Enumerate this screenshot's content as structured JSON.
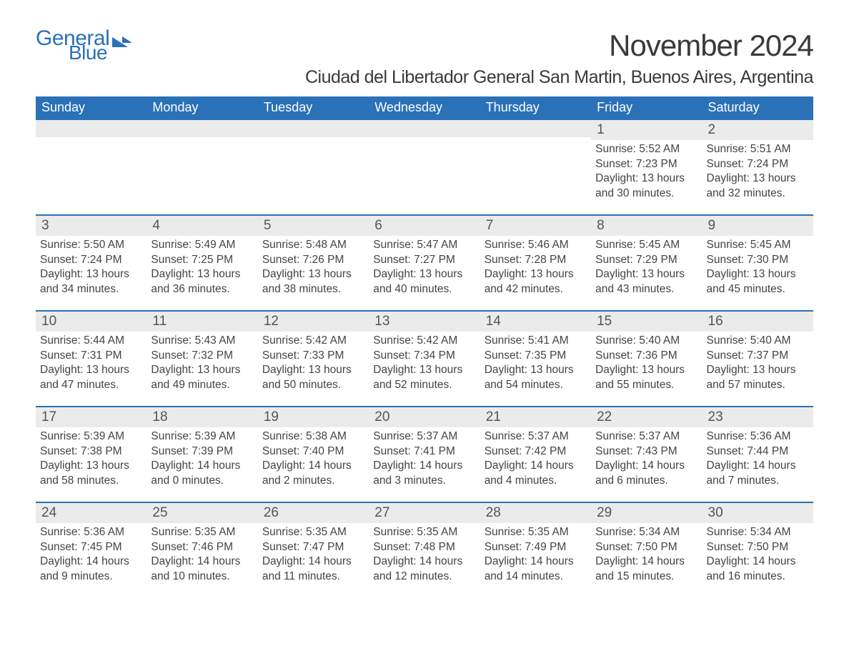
{
  "logo": {
    "text1": "General",
    "text2": "Blue"
  },
  "title": "November 2024",
  "location": "Ciudad del Libertador General San Martin, Buenos Aires, Argentina",
  "colors": {
    "header_bg": "#2a71b8",
    "header_text": "#ffffff",
    "daynum_bg": "#ebebeb",
    "text": "#444444",
    "border": "#2a71b8",
    "background": "#ffffff"
  },
  "typography": {
    "title_fontsize": 42,
    "location_fontsize": 25,
    "weekday_fontsize": 18,
    "daynum_fontsize": 19,
    "body_fontsize": 15.5
  },
  "weekdays": [
    "Sunday",
    "Monday",
    "Tuesday",
    "Wednesday",
    "Thursday",
    "Friday",
    "Saturday"
  ],
  "weeks": [
    [
      null,
      null,
      null,
      null,
      null,
      {
        "day": "1",
        "sunrise": "Sunrise: 5:52 AM",
        "sunset": "Sunset: 7:23 PM",
        "daylight1": "Daylight: 13 hours",
        "daylight2": "and 30 minutes."
      },
      {
        "day": "2",
        "sunrise": "Sunrise: 5:51 AM",
        "sunset": "Sunset: 7:24 PM",
        "daylight1": "Daylight: 13 hours",
        "daylight2": "and 32 minutes."
      }
    ],
    [
      {
        "day": "3",
        "sunrise": "Sunrise: 5:50 AM",
        "sunset": "Sunset: 7:24 PM",
        "daylight1": "Daylight: 13 hours",
        "daylight2": "and 34 minutes."
      },
      {
        "day": "4",
        "sunrise": "Sunrise: 5:49 AM",
        "sunset": "Sunset: 7:25 PM",
        "daylight1": "Daylight: 13 hours",
        "daylight2": "and 36 minutes."
      },
      {
        "day": "5",
        "sunrise": "Sunrise: 5:48 AM",
        "sunset": "Sunset: 7:26 PM",
        "daylight1": "Daylight: 13 hours",
        "daylight2": "and 38 minutes."
      },
      {
        "day": "6",
        "sunrise": "Sunrise: 5:47 AM",
        "sunset": "Sunset: 7:27 PM",
        "daylight1": "Daylight: 13 hours",
        "daylight2": "and 40 minutes."
      },
      {
        "day": "7",
        "sunrise": "Sunrise: 5:46 AM",
        "sunset": "Sunset: 7:28 PM",
        "daylight1": "Daylight: 13 hours",
        "daylight2": "and 42 minutes."
      },
      {
        "day": "8",
        "sunrise": "Sunrise: 5:45 AM",
        "sunset": "Sunset: 7:29 PM",
        "daylight1": "Daylight: 13 hours",
        "daylight2": "and 43 minutes."
      },
      {
        "day": "9",
        "sunrise": "Sunrise: 5:45 AM",
        "sunset": "Sunset: 7:30 PM",
        "daylight1": "Daylight: 13 hours",
        "daylight2": "and 45 minutes."
      }
    ],
    [
      {
        "day": "10",
        "sunrise": "Sunrise: 5:44 AM",
        "sunset": "Sunset: 7:31 PM",
        "daylight1": "Daylight: 13 hours",
        "daylight2": "and 47 minutes."
      },
      {
        "day": "11",
        "sunrise": "Sunrise: 5:43 AM",
        "sunset": "Sunset: 7:32 PM",
        "daylight1": "Daylight: 13 hours",
        "daylight2": "and 49 minutes."
      },
      {
        "day": "12",
        "sunrise": "Sunrise: 5:42 AM",
        "sunset": "Sunset: 7:33 PM",
        "daylight1": "Daylight: 13 hours",
        "daylight2": "and 50 minutes."
      },
      {
        "day": "13",
        "sunrise": "Sunrise: 5:42 AM",
        "sunset": "Sunset: 7:34 PM",
        "daylight1": "Daylight: 13 hours",
        "daylight2": "and 52 minutes."
      },
      {
        "day": "14",
        "sunrise": "Sunrise: 5:41 AM",
        "sunset": "Sunset: 7:35 PM",
        "daylight1": "Daylight: 13 hours",
        "daylight2": "and 54 minutes."
      },
      {
        "day": "15",
        "sunrise": "Sunrise: 5:40 AM",
        "sunset": "Sunset: 7:36 PM",
        "daylight1": "Daylight: 13 hours",
        "daylight2": "and 55 minutes."
      },
      {
        "day": "16",
        "sunrise": "Sunrise: 5:40 AM",
        "sunset": "Sunset: 7:37 PM",
        "daylight1": "Daylight: 13 hours",
        "daylight2": "and 57 minutes."
      }
    ],
    [
      {
        "day": "17",
        "sunrise": "Sunrise: 5:39 AM",
        "sunset": "Sunset: 7:38 PM",
        "daylight1": "Daylight: 13 hours",
        "daylight2": "and 58 minutes."
      },
      {
        "day": "18",
        "sunrise": "Sunrise: 5:39 AM",
        "sunset": "Sunset: 7:39 PM",
        "daylight1": "Daylight: 14 hours",
        "daylight2": "and 0 minutes."
      },
      {
        "day": "19",
        "sunrise": "Sunrise: 5:38 AM",
        "sunset": "Sunset: 7:40 PM",
        "daylight1": "Daylight: 14 hours",
        "daylight2": "and 2 minutes."
      },
      {
        "day": "20",
        "sunrise": "Sunrise: 5:37 AM",
        "sunset": "Sunset: 7:41 PM",
        "daylight1": "Daylight: 14 hours",
        "daylight2": "and 3 minutes."
      },
      {
        "day": "21",
        "sunrise": "Sunrise: 5:37 AM",
        "sunset": "Sunset: 7:42 PM",
        "daylight1": "Daylight: 14 hours",
        "daylight2": "and 4 minutes."
      },
      {
        "day": "22",
        "sunrise": "Sunrise: 5:37 AM",
        "sunset": "Sunset: 7:43 PM",
        "daylight1": "Daylight: 14 hours",
        "daylight2": "and 6 minutes."
      },
      {
        "day": "23",
        "sunrise": "Sunrise: 5:36 AM",
        "sunset": "Sunset: 7:44 PM",
        "daylight1": "Daylight: 14 hours",
        "daylight2": "and 7 minutes."
      }
    ],
    [
      {
        "day": "24",
        "sunrise": "Sunrise: 5:36 AM",
        "sunset": "Sunset: 7:45 PM",
        "daylight1": "Daylight: 14 hours",
        "daylight2": "and 9 minutes."
      },
      {
        "day": "25",
        "sunrise": "Sunrise: 5:35 AM",
        "sunset": "Sunset: 7:46 PM",
        "daylight1": "Daylight: 14 hours",
        "daylight2": "and 10 minutes."
      },
      {
        "day": "26",
        "sunrise": "Sunrise: 5:35 AM",
        "sunset": "Sunset: 7:47 PM",
        "daylight1": "Daylight: 14 hours",
        "daylight2": "and 11 minutes."
      },
      {
        "day": "27",
        "sunrise": "Sunrise: 5:35 AM",
        "sunset": "Sunset: 7:48 PM",
        "daylight1": "Daylight: 14 hours",
        "daylight2": "and 12 minutes."
      },
      {
        "day": "28",
        "sunrise": "Sunrise: 5:35 AM",
        "sunset": "Sunset: 7:49 PM",
        "daylight1": "Daylight: 14 hours",
        "daylight2": "and 14 minutes."
      },
      {
        "day": "29",
        "sunrise": "Sunrise: 5:34 AM",
        "sunset": "Sunset: 7:50 PM",
        "daylight1": "Daylight: 14 hours",
        "daylight2": "and 15 minutes."
      },
      {
        "day": "30",
        "sunrise": "Sunrise: 5:34 AM",
        "sunset": "Sunset: 7:50 PM",
        "daylight1": "Daylight: 14 hours",
        "daylight2": "and 16 minutes."
      }
    ]
  ]
}
